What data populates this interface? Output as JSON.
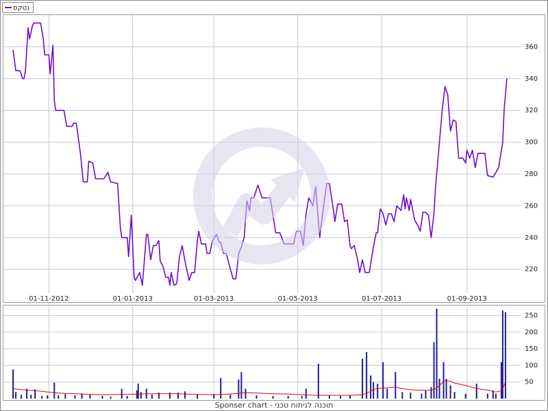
{
  "chart_data": [
    {
      "type": "line",
      "xlim": [
        "2012-09-29",
        "2013-10-10"
      ],
      "xticks": [
        {
          "value": "2012-11-01",
          "label": "01-11-2012"
        },
        {
          "value": "2013-01-01",
          "label": "01-01-2013"
        },
        {
          "value": "2013-03-01",
          "label": "01-03-2013"
        },
        {
          "value": "2013-05-01",
          "label": "01-05-2013"
        },
        {
          "value": "2013-07-01",
          "label": "01-07-2013"
        },
        {
          "value": "2013-09-01",
          "label": "01-09-2013"
        }
      ],
      "ylim": [
        205,
        380
      ],
      "yticks": [
        220,
        240,
        260,
        280,
        300,
        320,
        340,
        360
      ],
      "grid": true,
      "legend": "top-left",
      "x": [
        "2012-10-06",
        "2012-10-08",
        "2012-10-11",
        "2012-10-13",
        "2012-10-14",
        "2012-10-15",
        "2012-10-17",
        "2012-10-18",
        "2012-10-20",
        "2012-10-21",
        "2012-10-26",
        "2012-10-28",
        "2012-10-29",
        "2012-11-01",
        "2012-11-02",
        "2012-11-04",
        "2012-11-05",
        "2012-11-06",
        "2012-11-12",
        "2012-11-14",
        "2012-11-18",
        "2012-11-19",
        "2012-11-21",
        "2012-11-24",
        "2012-11-26",
        "2012-11-29",
        "2012-11-30",
        "2012-12-03",
        "2012-12-05",
        "2012-12-11",
        "2012-12-14",
        "2012-12-16",
        "2012-12-21",
        "2012-12-23",
        "2012-12-24",
        "2012-12-28",
        "2012-12-29",
        "2012-12-31",
        "2013-01-02",
        "2013-01-03",
        "2013-01-06",
        "2013-01-08",
        "2013-01-11",
        "2013-01-12",
        "2013-01-14",
        "2013-01-16",
        "2013-01-18",
        "2013-01-20",
        "2013-01-21",
        "2013-01-23",
        "2013-01-25",
        "2013-01-27",
        "2013-01-28",
        "2013-01-29",
        "2013-01-31",
        "2013-02-02",
        "2013-02-04",
        "2013-02-06",
        "2013-02-08",
        "2013-02-11",
        "2013-02-13",
        "2013-02-15",
        "2013-02-17",
        "2013-02-18",
        "2013-02-20",
        "2013-02-23",
        "2013-02-24",
        "2013-02-26",
        "2013-02-28",
        "2013-03-03",
        "2013-03-05",
        "2013-03-06",
        "2013-03-08",
        "2013-03-10",
        "2013-03-13",
        "2013-03-15",
        "2013-03-17",
        "2013-03-19",
        "2013-03-21",
        "2013-03-23",
        "2013-03-25",
        "2013-03-27",
        "2013-03-28",
        "2013-03-30",
        "2013-04-02",
        "2013-04-05",
        "2013-04-11",
        "2013-04-15",
        "2013-04-18",
        "2013-04-21",
        "2013-04-28",
        "2013-04-30",
        "2013-05-03",
        "2013-05-05",
        "2013-05-07",
        "2013-05-09",
        "2013-05-12",
        "2013-05-14",
        "2013-05-17",
        "2013-05-19",
        "2013-05-22",
        "2013-05-24",
        "2013-05-27",
        "2013-05-28",
        "2013-05-30",
        "2013-06-02",
        "2013-06-04",
        "2013-06-06",
        "2013-06-08",
        "2013-06-09",
        "2013-06-11",
        "2013-06-13",
        "2013-06-15",
        "2013-06-17",
        "2013-06-19",
        "2013-06-22",
        "2013-06-25",
        "2013-06-27",
        "2013-06-28",
        "2013-06-30",
        "2013-07-02",
        "2013-07-04",
        "2013-07-06",
        "2013-07-08",
        "2013-07-10",
        "2013-07-12",
        "2013-07-15",
        "2013-07-17",
        "2013-07-18",
        "2013-07-19",
        "2013-07-21",
        "2013-07-22",
        "2013-07-25",
        "2013-07-27",
        "2013-07-29",
        "2013-07-31",
        "2013-08-02",
        "2013-08-04",
        "2013-08-06",
        "2013-08-08",
        "2013-08-09",
        "2013-08-12",
        "2013-08-14",
        "2013-08-16",
        "2013-08-18",
        "2013-08-20",
        "2013-08-22",
        "2013-08-24",
        "2013-08-26",
        "2013-08-29",
        "2013-08-31",
        "2013-09-01",
        "2013-09-03",
        "2013-09-05",
        "2013-09-07",
        "2013-09-09",
        "2013-09-14",
        "2013-09-16",
        "2013-09-20",
        "2013-09-22",
        "2013-09-24",
        "2013-09-27",
        "2013-09-28",
        "2013-09-30"
      ],
      "series": [
        {
          "name": "נטקס",
          "color": "#6a0dcc",
          "values": [
            358,
            345,
            345,
            340,
            340,
            345,
            372,
            365,
            373,
            375,
            375,
            365,
            355,
            355,
            343,
            361,
            326,
            320,
            320,
            310,
            310,
            312,
            312,
            293,
            275,
            275,
            288,
            287,
            277,
            277,
            281,
            275,
            274,
            246,
            240,
            240,
            228,
            254,
            215,
            213,
            218,
            210,
            242,
            242,
            226,
            235,
            235,
            238,
            225,
            222,
            215,
            215,
            210,
            218,
            210,
            211,
            228,
            235,
            225,
            213,
            218,
            218,
            238,
            244,
            236,
            236,
            230,
            230,
            238,
            242,
            237,
            237,
            230,
            230,
            220,
            214,
            214,
            230,
            234,
            240,
            263,
            257,
            265,
            265,
            273,
            265,
            265,
            243,
            243,
            236,
            236,
            244,
            244,
            235,
            255,
            265,
            260,
            272,
            240,
            255,
            274,
            274,
            257,
            250,
            261,
            261,
            250,
            251,
            235,
            233,
            235,
            228,
            218,
            226,
            218,
            218,
            234,
            243,
            243,
            258,
            255,
            248,
            255,
            255,
            250,
            260,
            257,
            267,
            258,
            265,
            257,
            264,
            251,
            248,
            244,
            256,
            256,
            254,
            240,
            255,
            270,
            300,
            320,
            335,
            330,
            307,
            314,
            313,
            290,
            290,
            287,
            295,
            290,
            295,
            284,
            293,
            293,
            279,
            278,
            281,
            284,
            300,
            320,
            340
          ]
        }
      ]
    },
    {
      "type": "bar",
      "ylim": [
        0,
        280
      ],
      "yticks": [
        50,
        100,
        150,
        200,
        250
      ],
      "grid": true,
      "x": [
        "2012-10-06",
        "2012-10-08",
        "2012-10-12",
        "2012-10-16",
        "2012-10-19",
        "2012-10-22",
        "2012-10-27",
        "2012-10-31",
        "2012-11-05",
        "2012-11-08",
        "2012-11-13",
        "2012-11-20",
        "2012-11-25",
        "2012-12-01",
        "2012-12-10",
        "2012-12-16",
        "2012-12-24",
        "2012-12-28",
        "2013-01-04",
        "2013-01-05",
        "2013-01-07",
        "2013-01-11",
        "2013-01-15",
        "2013-01-20",
        "2013-01-28",
        "2013-02-03",
        "2013-02-08",
        "2013-02-17",
        "2013-03-01",
        "2013-03-06",
        "2013-03-13",
        "2013-03-19",
        "2013-03-21",
        "2013-03-24",
        "2013-04-01",
        "2013-04-13",
        "2013-04-24",
        "2013-05-04",
        "2013-05-07",
        "2013-05-16",
        "2013-05-24",
        "2013-06-01",
        "2013-06-08",
        "2013-06-17",
        "2013-06-20",
        "2013-06-23",
        "2013-06-25",
        "2013-06-28",
        "2013-07-02",
        "2013-07-05",
        "2013-07-11",
        "2013-07-16",
        "2013-07-22",
        "2013-07-30",
        "2013-08-02",
        "2013-08-06",
        "2013-08-08",
        "2013-08-10",
        "2013-08-12",
        "2013-08-15",
        "2013-08-17",
        "2013-08-20",
        "2013-08-23",
        "2013-08-31",
        "2013-09-08",
        "2013-09-16",
        "2013-09-20",
        "2013-09-22",
        "2013-09-26",
        "2013-09-27",
        "2013-09-29"
      ],
      "series": [
        {
          "color": "#1c1c8e",
          "values": [
            88,
            20,
            12,
            30,
            12,
            28,
            8,
            10,
            48,
            10,
            14,
            10,
            16,
            12,
            8,
            6,
            30,
            8,
            25,
            45,
            20,
            30,
            12,
            18,
            18,
            18,
            22,
            12,
            14,
            62,
            12,
            58,
            80,
            30,
            10,
            8,
            8,
            8,
            30,
            105,
            10,
            8,
            10,
            120,
            140,
            70,
            50,
            45,
            110,
            30,
            80,
            20,
            18,
            15,
            25,
            35,
            170,
            270,
            60,
            110,
            60,
            40,
            20,
            15,
            45,
            15,
            25,
            15,
            110,
            265,
            260
          ]
        },
        {
          "type": "line",
          "color": "#e00000",
          "values": [
            30,
            29,
            27,
            26,
            25,
            24,
            22,
            20,
            18,
            17,
            16,
            15,
            14,
            13,
            12,
            12,
            13,
            13,
            14,
            14,
            14,
            15,
            15,
            15,
            15,
            15,
            14,
            13,
            12,
            13,
            14,
            16,
            17,
            18,
            17,
            15,
            14,
            12,
            11,
            10,
            10,
            10,
            10,
            12,
            16,
            22,
            28,
            30,
            32,
            33,
            35,
            30,
            27,
            25,
            25,
            26,
            28,
            32,
            40,
            52,
            55,
            52,
            47,
            40,
            30,
            26,
            22,
            20,
            24,
            30,
            50
          ]
        }
      ]
    }
  ],
  "footer": "Sponser chart - תוכנה לניתוח טכני"
}
